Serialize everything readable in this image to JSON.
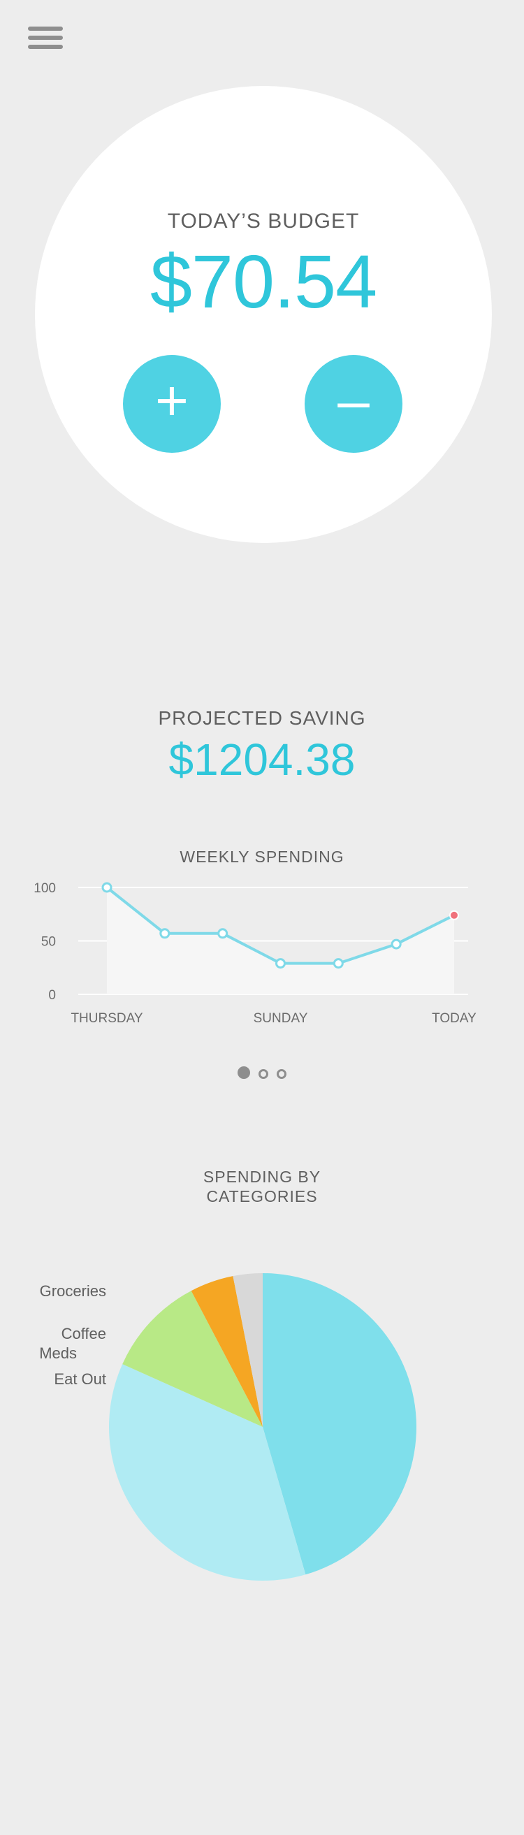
{
  "menu": {
    "icon": "hamburger-menu-icon"
  },
  "budget": {
    "title": "TODAY’S BUDGET",
    "amount": "$70.54",
    "add_label": "+",
    "subtract_label": "–"
  },
  "projected": {
    "title": "PROJECTED SAVING",
    "amount": "$1204.38"
  },
  "weekly": {
    "title": "WEEKLY SPENDING",
    "pager": {
      "count": 3,
      "active": 0
    }
  },
  "categories": {
    "title": "SPENDING BY\nCATEGORIES"
  },
  "colors": {
    "accent": "#2fc6da",
    "button": "#4fd2e3",
    "line": "#7fd9e8",
    "today_point": "#f0717b",
    "groceries": "#d8d8d8",
    "coffee": "#f5a623",
    "meds": "#b8e986",
    "eat_out": "#b0ebf3",
    "other": "#7fdfeb"
  },
  "chart_data": [
    {
      "type": "line",
      "title": "WEEKLY SPENDING",
      "x": [
        "THURSDAY",
        "",
        "",
        "SUNDAY",
        "",
        "",
        "TODAY"
      ],
      "x_tick_labels": [
        "THURSDAY",
        "SUNDAY",
        "TODAY"
      ],
      "series": [
        {
          "values": [
            100,
            57,
            57,
            29,
            29,
            47,
            74
          ]
        }
      ],
      "ylim": [
        0,
        100
      ],
      "y_ticks": [
        0,
        50,
        100
      ],
      "grid": true
    },
    {
      "type": "pie",
      "title": "SPENDING BY CATEGORIES",
      "slices": [
        {
          "label": "",
          "value": 45.5,
          "color": "#7fdfeb"
        },
        {
          "label": "Eat Out",
          "value": 36.2,
          "color": "#b0ebf3"
        },
        {
          "label": "Meds",
          "value": 10.6,
          "color": "#b8e986"
        },
        {
          "label": "Coffee",
          "value": 4.6,
          "color": "#f5a623"
        },
        {
          "label": "Groceries",
          "value": 3.1,
          "color": "#d8d8d8"
        }
      ]
    }
  ]
}
